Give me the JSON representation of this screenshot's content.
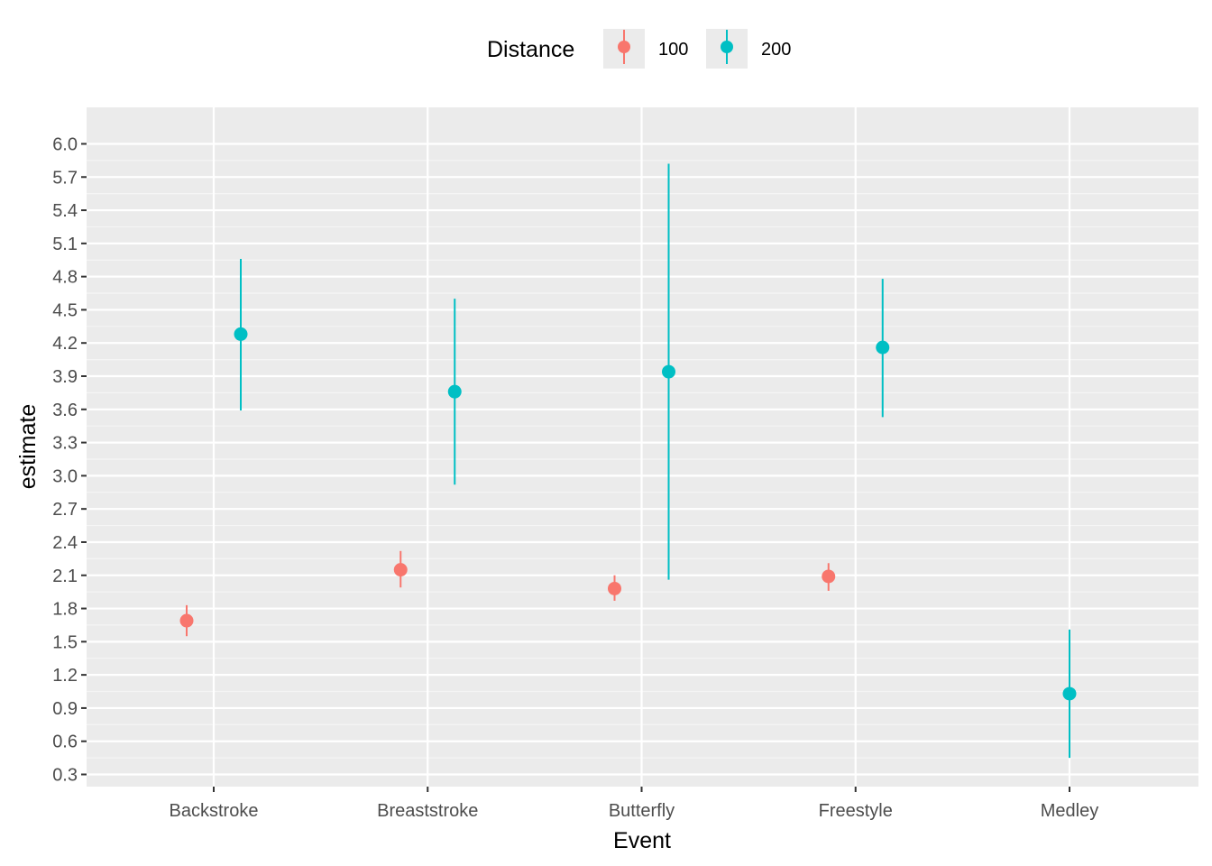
{
  "chart_data": {
    "type": "pointrange",
    "xlabel": "Event",
    "ylabel": "estimate",
    "categories": [
      "Backstroke",
      "Breaststroke",
      "Butterfly",
      "Freestyle",
      "Medley"
    ],
    "ylim": [
      0.19,
      6.33
    ],
    "yticks": [
      0.3,
      0.6,
      0.9,
      1.2,
      1.5,
      1.8,
      2.1,
      2.4,
      2.7,
      3.0,
      3.3,
      3.6,
      3.9,
      4.2,
      4.5,
      4.8,
      5.1,
      5.4,
      5.7,
      6.0
    ],
    "ytick_labels": [
      "0.3",
      "0.6",
      "0.9",
      "1.2",
      "1.5",
      "1.8",
      "2.1",
      "2.4",
      "2.7",
      "3.0",
      "3.3",
      "3.6",
      "3.9",
      "4.2",
      "4.5",
      "4.8",
      "5.1",
      "5.4",
      "5.7",
      "6.0"
    ],
    "grid": true,
    "legend": {
      "title": "Distance",
      "position": "top"
    },
    "series": [
      {
        "name": "100",
        "color": "#F8766D",
        "points": [
          {
            "category": "Backstroke",
            "estimate": 1.69,
            "low": 1.55,
            "high": 1.83
          },
          {
            "category": "Breaststroke",
            "estimate": 2.15,
            "low": 1.99,
            "high": 2.32
          },
          {
            "category": "Butterfly",
            "estimate": 1.98,
            "low": 1.87,
            "high": 2.1
          },
          {
            "category": "Freestyle",
            "estimate": 2.09,
            "low": 1.96,
            "high": 2.21
          }
        ]
      },
      {
        "name": "200",
        "color": "#00BFC4",
        "points": [
          {
            "category": "Backstroke",
            "estimate": 4.28,
            "low": 3.59,
            "high": 4.96
          },
          {
            "category": "Breaststroke",
            "estimate": 3.76,
            "low": 2.92,
            "high": 4.6
          },
          {
            "category": "Butterfly",
            "estimate": 3.94,
            "low": 2.06,
            "high": 5.82
          },
          {
            "category": "Freestyle",
            "estimate": 4.16,
            "low": 3.53,
            "high": 4.78
          },
          {
            "category": "Medley",
            "estimate": 1.03,
            "low": 0.45,
            "high": 1.61
          }
        ]
      }
    ]
  }
}
